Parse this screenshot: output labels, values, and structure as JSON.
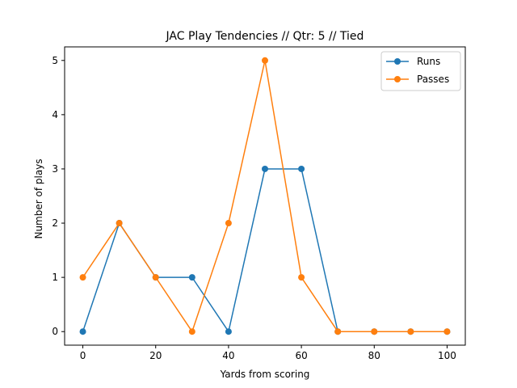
{
  "chart_data": {
    "type": "line",
    "title": "JAC Play Tendencies // Qtr: 5 // Tied",
    "xlabel": "Yards from scoring",
    "ylabel": "Number of plays",
    "x": [
      0,
      10,
      20,
      30,
      40,
      50,
      60,
      70,
      80,
      90,
      100
    ],
    "xlim": [
      -5,
      105
    ],
    "ylim": [
      -0.25,
      5.25
    ],
    "xticks": [
      0,
      20,
      40,
      60,
      80,
      100
    ],
    "yticks": [
      0,
      1,
      2,
      3,
      4,
      5
    ],
    "grid": false,
    "legend_position": "upper-right",
    "series": [
      {
        "name": "Runs",
        "color": "#1f77b4",
        "values": [
          0,
          2,
          1,
          1,
          0,
          3,
          3,
          0,
          0,
          0,
          0
        ]
      },
      {
        "name": "Passes",
        "color": "#ff7f0e",
        "values": [
          1,
          2,
          1,
          0,
          2,
          5,
          1,
          0,
          0,
          0,
          0
        ]
      }
    ]
  }
}
